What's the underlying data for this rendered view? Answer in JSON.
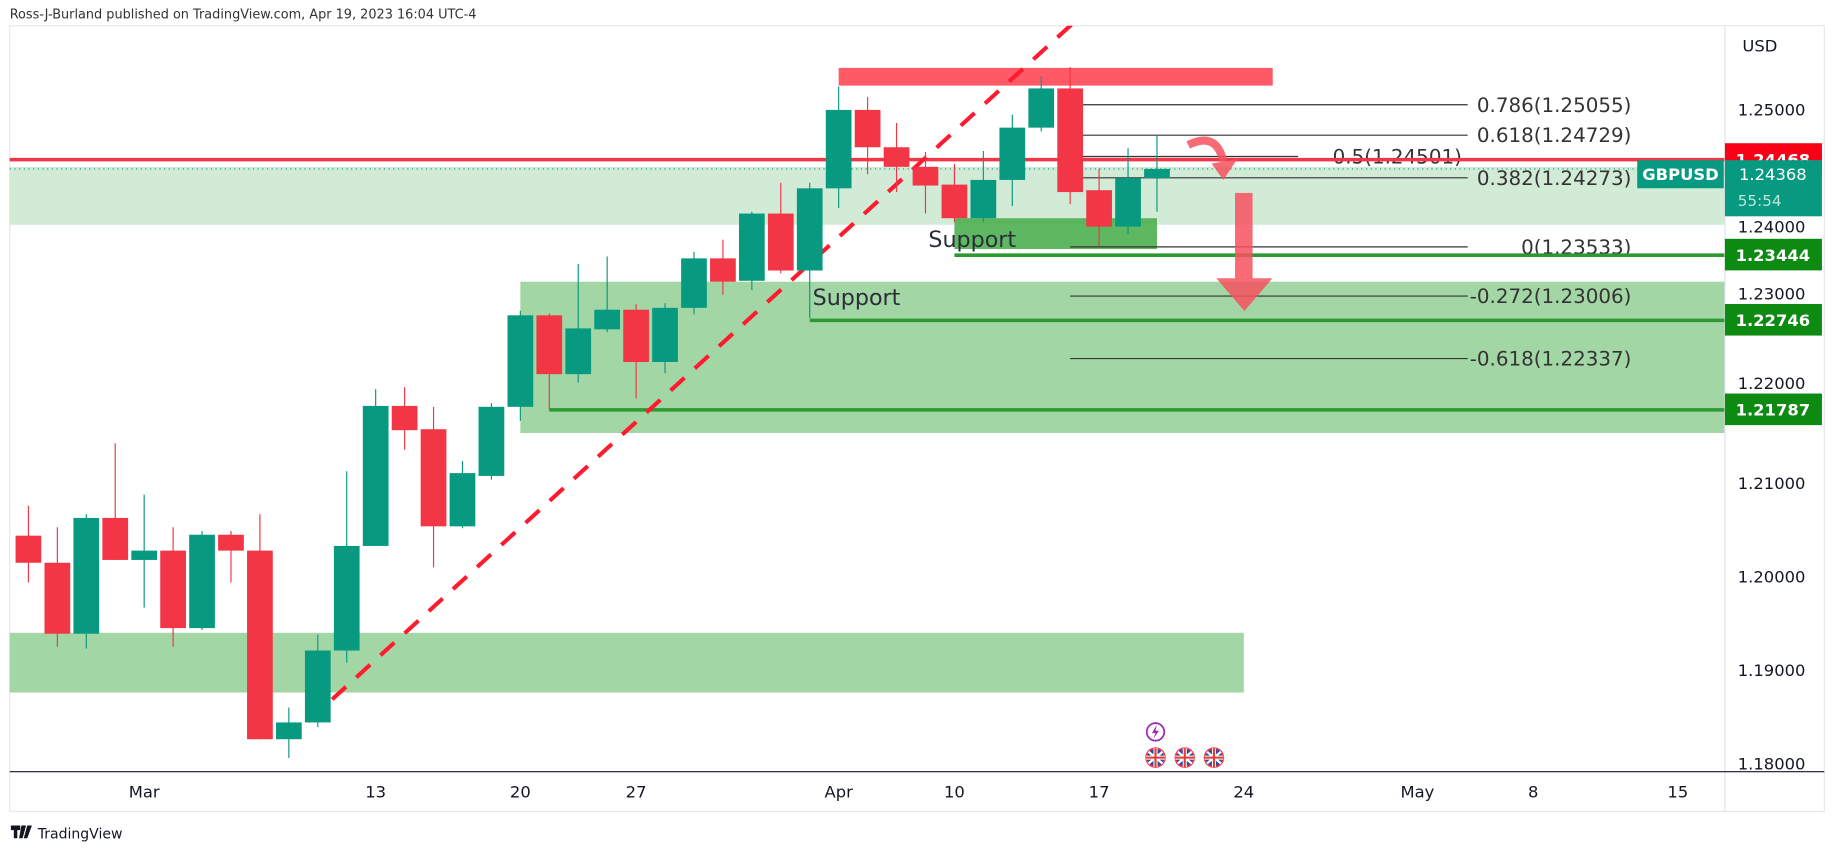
{
  "header": {
    "published": "Ross-J-Burland published on TradingView.com, Apr 19, 2023 16:04 UTC-4"
  },
  "footer": {
    "brand": "TradingView"
  },
  "colors": {
    "up": "#089981",
    "down": "#f23645",
    "zone_light": "#d2ebd6",
    "zone": "#a3d6a5",
    "zone_dark": "#4caf50",
    "support_line": "#2a9a31",
    "resistance": "#f23645",
    "badge_support": "#0d8a12",
    "badge_red": "#f90016"
  },
  "symbol": {
    "name": "GBPUSD",
    "price": "1.24368",
    "countdown": "55:54"
  },
  "chart_data": {
    "type": "candlestick",
    "symbol": "GBPUSD",
    "currency": "USD",
    "ylim": [
      1.18,
      1.2586
    ],
    "yticks": [
      "1.25000",
      "1.24000",
      "1.23000",
      "1.22000",
      "1.21000",
      "1.20000",
      "1.19000",
      "1.18000"
    ],
    "xticks": [
      {
        "label": "Mar",
        "bar": 4
      },
      {
        "label": "13",
        "bar": 12
      },
      {
        "label": "20",
        "bar": 17
      },
      {
        "label": "27",
        "bar": 21
      },
      {
        "label": "Apr",
        "bar": 28
      },
      {
        "label": "10",
        "bar": 32
      },
      {
        "label": "17",
        "bar": 37
      },
      {
        "label": "24",
        "bar": 42
      },
      {
        "label": "May",
        "bar": 48
      },
      {
        "label": "8",
        "bar": 52
      },
      {
        "label": "15",
        "bar": 57
      }
    ],
    "candles": [
      [
        1.2044,
        1.2076,
        1.1994,
        1.2015
      ],
      [
        1.2015,
        1.2053,
        1.1925,
        1.1939
      ],
      [
        1.1939,
        1.2067,
        1.1923,
        1.2063
      ],
      [
        1.2063,
        1.2143,
        1.2018,
        1.2018
      ],
      [
        1.2018,
        1.2088,
        1.1967,
        1.2028
      ],
      [
        1.2028,
        1.2053,
        1.1925,
        1.1945
      ],
      [
        1.1945,
        1.2049,
        1.1943,
        1.2045
      ],
      [
        1.2045,
        1.2049,
        1.1994,
        1.2028
      ],
      [
        1.2028,
        1.2067,
        1.1826,
        1.1826
      ],
      [
        1.1826,
        1.186,
        1.1806,
        1.1844
      ],
      [
        1.1844,
        1.1938,
        1.1839,
        1.1921
      ],
      [
        1.1921,
        1.2113,
        1.1908,
        1.2033
      ],
      [
        1.2033,
        1.2201,
        1.2033,
        1.2183
      ],
      [
        1.2183,
        1.2203,
        1.2136,
        1.2157
      ],
      [
        1.2158,
        1.2182,
        1.201,
        1.2054
      ],
      [
        1.2054,
        1.2124,
        1.2052,
        1.2111
      ],
      [
        1.2108,
        1.2186,
        1.2104,
        1.2182
      ],
      [
        1.2182,
        1.2285,
        1.2167,
        1.228
      ],
      [
        1.228,
        1.2282,
        1.2179,
        1.2217
      ],
      [
        1.2217,
        1.2335,
        1.2208,
        1.2266
      ],
      [
        1.2265,
        1.2343,
        1.2262,
        1.2286
      ],
      [
        1.2286,
        1.2292,
        1.2191,
        1.223
      ],
      [
        1.223,
        1.2293,
        1.2218,
        1.2288
      ],
      [
        1.2288,
        1.2348,
        1.2281,
        1.2341
      ],
      [
        1.2341,
        1.2361,
        1.2302,
        1.2316
      ],
      [
        1.2317,
        1.2391,
        1.2307,
        1.2389
      ],
      [
        1.2389,
        1.2422,
        1.2325,
        1.2328
      ],
      [
        1.2328,
        1.2422,
        1.2277,
        1.2416
      ],
      [
        1.2416,
        1.2525,
        1.2395,
        1.25
      ],
      [
        1.25,
        1.2514,
        1.2431,
        1.246
      ],
      [
        1.246,
        1.2486,
        1.2412,
        1.2439
      ],
      [
        1.2439,
        1.2455,
        1.2389,
        1.2419
      ],
      [
        1.242,
        1.2442,
        1.238,
        1.2384
      ],
      [
        1.2384,
        1.2456,
        1.238,
        1.2425
      ],
      [
        1.2425,
        1.2495,
        1.2397,
        1.2481
      ],
      [
        1.2481,
        1.2536,
        1.2477,
        1.2523
      ],
      [
        1.2523,
        1.2546,
        1.2399,
        1.2412
      ],
      [
        1.2414,
        1.2437,
        1.2354,
        1.2375
      ],
      [
        1.2375,
        1.2459,
        1.2367,
        1.2427
      ],
      [
        1.2427,
        1.2472,
        1.2391,
        1.24368
      ]
    ],
    "candle_fields": [
      "open",
      "high",
      "low",
      "close"
    ],
    "zones": [
      {
        "name": "upper-zone",
        "from_bar": -0.65,
        "to_bar": null,
        "top": 1.2439,
        "bottom": 1.2377,
        "color": "#d2ebd6"
      },
      {
        "name": "middle-support-zone",
        "from_bar": 17,
        "to_bar": null,
        "top": 1.2316,
        "bottom": 1.2154,
        "color": "#a3d6a5"
      },
      {
        "name": "lower-zone",
        "from_bar": -0.65,
        "to_bar": 42,
        "top": 1.194,
        "bottom": 1.1876,
        "color": "#a3d6a5"
      },
      {
        "name": "support-box",
        "from_bar": 32,
        "to_bar": 39,
        "top": 1.2384,
        "bottom": 1.2351,
        "color": "#4caf50"
      },
      {
        "name": "resistance-box",
        "from_bar": 28,
        "to_bar": 43,
        "top": 1.2545,
        "bottom": 1.2526,
        "color": "#ff5a66"
      }
    ],
    "horizontal_lines": [
      {
        "name": "resistance-line",
        "price": 1.24468,
        "from_bar": -0.65,
        "color": "#f23645",
        "badge": "1.24468"
      },
      {
        "name": "support-line-1",
        "price": 1.23444,
        "from_bar": 32,
        "color": "#2a9a31",
        "badge": "1.23444"
      },
      {
        "name": "support-line-2",
        "price": 1.22746,
        "from_bar": 27,
        "color": "#2a9a31",
        "badge": "1.22746"
      },
      {
        "name": "support-line-3",
        "price": 1.21787,
        "from_bar": 18,
        "color": "#2a9a31",
        "badge": "1.21787"
      }
    ],
    "trendline": {
      "from": {
        "bar": 9.66,
        "price": 1.1845
      },
      "to": {
        "bar": 39,
        "price": 1.2675
      },
      "color": "#ff1a2e",
      "style": "dashed"
    },
    "fibonacci": {
      "from_bar": 36,
      "levels": [
        {
          "level": 0.786,
          "price": 1.25055,
          "label": "0.786(1.25055)"
        },
        {
          "level": 0.618,
          "price": 1.24729,
          "label": "0.618(1.24729)"
        },
        {
          "level": 0.5,
          "price": 1.24501,
          "label": "0.5(1.24501)"
        },
        {
          "level": 0.382,
          "price": 1.24273,
          "label": "0.382(1.24273)"
        },
        {
          "level": 0,
          "price": 1.23533,
          "label": "0(1.23533)"
        },
        {
          "level": -0.272,
          "price": 1.23006,
          "label": "-0.272(1.23006)"
        },
        {
          "level": -0.618,
          "price": 1.22337,
          "label": "-0.618(1.22337)"
        }
      ]
    },
    "annotations": [
      {
        "text": "Support",
        "bar": 31.1,
        "price": 1.2353
      },
      {
        "text": "Support",
        "bar": 27.1,
        "price": 1.2291
      }
    ]
  }
}
